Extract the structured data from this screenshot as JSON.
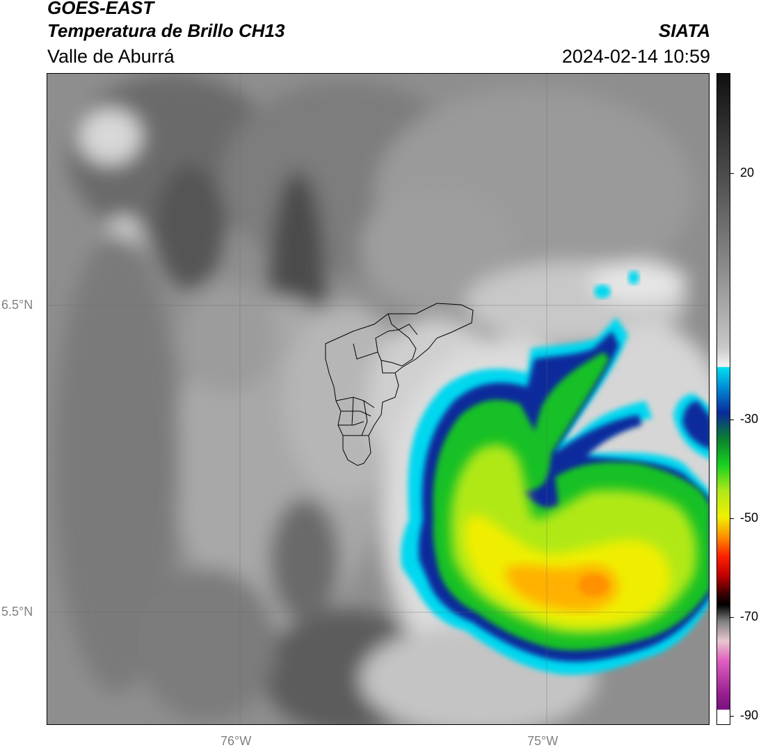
{
  "header": {
    "satellite": "GOES-EAST",
    "product": "Temperatura de Brillo CH13",
    "region": "Valle de Aburrá",
    "agency": "SIATA",
    "timestamp": "2024-02-14 10:59"
  },
  "map": {
    "latitude_labels": [
      "6.5°N",
      "5.5°N"
    ],
    "longitude_labels": [
      "76°W",
      "75°W"
    ],
    "gridlines": true,
    "boundaries_shown": "municipal boundaries"
  },
  "colorbar": {
    "tick_labels": [
      "20",
      "-30",
      "-50",
      "-70",
      "-90"
    ],
    "colors": {
      "cyan": "#00e0f0",
      "blue": "#0a2a9c",
      "green": "#18d020",
      "yellow": "#f0f000",
      "orange": "#ff8000",
      "red": "#e00000",
      "magenta": "#e060c0",
      "purple": "#7a1080"
    }
  }
}
